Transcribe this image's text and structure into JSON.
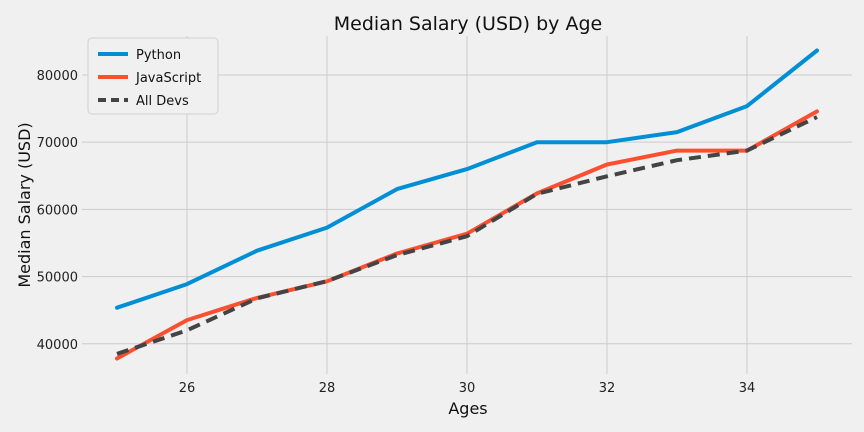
{
  "chart_data": {
    "type": "line",
    "title": "Median Salary (USD) by Age",
    "xlabel": "Ages",
    "ylabel": "Median Salary (USD)",
    "x": [
      25,
      26,
      27,
      28,
      29,
      30,
      31,
      32,
      33,
      34,
      35
    ],
    "xlim": [
      24.5,
      35.5
    ],
    "ylim": [
      35500,
      85800
    ],
    "xticks": [
      26,
      28,
      30,
      32,
      34
    ],
    "yticks": [
      40000,
      50000,
      60000,
      70000,
      80000
    ],
    "grid": true,
    "legend_position": "top-left",
    "series": [
      {
        "name": "Python",
        "color": "#008fd5",
        "style": "solid",
        "values": [
          45372,
          48876,
          53850,
          57287,
          63016,
          65998,
          70003,
          70000,
          71496,
          75370,
          83640
        ]
      },
      {
        "name": "JavaScript",
        "color": "#fc4f30",
        "style": "solid",
        "values": [
          37810,
          43515,
          46823,
          49293,
          53437,
          56373,
          62375,
          66674,
          68745,
          68746,
          74583
        ]
      },
      {
        "name": "All Devs",
        "color": "#444444",
        "style": "dashed",
        "values": [
          38496,
          42000,
          46752,
          49320,
          53200,
          56000,
          62316,
          64928,
          67317,
          68748,
          73752
        ]
      }
    ]
  }
}
